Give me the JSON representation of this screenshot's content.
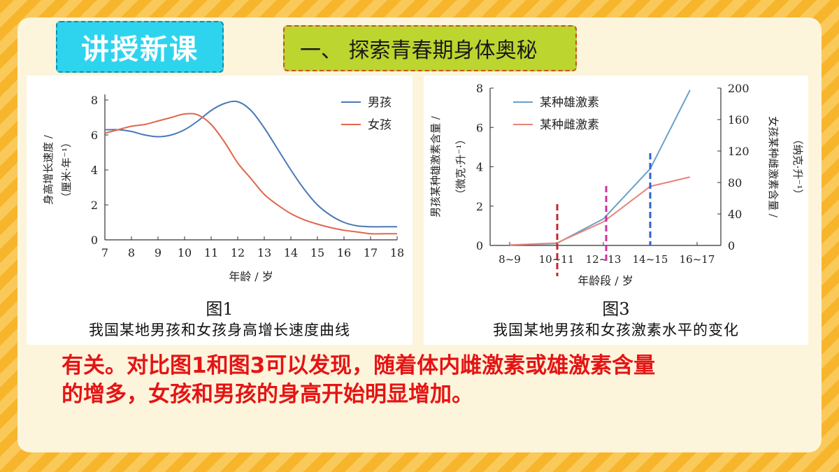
{
  "badge": {
    "label": "讲授新课",
    "bg": "#2ed4ee"
  },
  "section": {
    "title": "一、 探索青春期身体奥秘",
    "bg": "#bcd52f"
  },
  "fig1": {
    "caption_num": "图1",
    "caption_title": "我国某地男孩和女孩身高增长速度曲线"
  },
  "fig3": {
    "caption_num": "图3",
    "caption_title": "我国某地男孩和女孩激素水平的变化"
  },
  "conclusion": {
    "line1": "有关。对比图1和图3可以发现，随着体内雌激素或雄激素含量",
    "line2": "的增多，女孩和男孩的身高开始明显增加。",
    "color": "#e51414"
  },
  "chart_data": [
    {
      "type": "line",
      "xlabel": "年龄 / 岁",
      "ylabel": "身高增长速度 /（厘米·年⁻¹）",
      "xlim": [
        7,
        18
      ],
      "ylim": [
        0,
        8
      ],
      "xticks": [
        "7",
        "8",
        "9",
        "10",
        "11",
        "12",
        "13",
        "14",
        "15",
        "16",
        "17",
        "18"
      ],
      "yticks": [
        "0",
        "2",
        "4",
        "6",
        "8"
      ],
      "legend_position": "top-right",
      "series": [
        {
          "name": "男孩",
          "color": "#4a78b5",
          "x": [
            7,
            7.5,
            8,
            8.5,
            9,
            9.5,
            10,
            10.5,
            11,
            11.5,
            12,
            12.5,
            13,
            13.5,
            14,
            14.5,
            15,
            15.5,
            16,
            16.5,
            17,
            17.5,
            18
          ],
          "y": [
            6.3,
            6.3,
            6.2,
            6.0,
            5.9,
            6.0,
            6.3,
            6.8,
            7.4,
            7.8,
            7.9,
            7.4,
            6.4,
            5.2,
            4.0,
            2.9,
            2.0,
            1.4,
            1.0,
            0.8,
            0.75,
            0.75,
            0.75
          ]
        },
        {
          "name": "女孩",
          "color": "#e0664c",
          "x": [
            7,
            7.5,
            8,
            8.5,
            9,
            9.5,
            10,
            10.5,
            11,
            11.5,
            12,
            12.5,
            13,
            13.5,
            14,
            14.5,
            15,
            15.5,
            16,
            16.5,
            17,
            17.5,
            18
          ],
          "y": [
            6.1,
            6.3,
            6.5,
            6.6,
            6.8,
            7.0,
            7.2,
            7.15,
            6.6,
            5.6,
            4.4,
            3.5,
            2.6,
            2.0,
            1.5,
            1.15,
            0.9,
            0.7,
            0.55,
            0.45,
            0.35,
            0.35,
            0.35
          ]
        }
      ]
    },
    {
      "type": "line",
      "xlabel": "年龄段 / 岁",
      "ylabel": "男孩某种雄激素含量 /（微克·升⁻¹）",
      "ylabel_right": "女孩某种雌激素含量 /（纳克·升⁻¹）",
      "categories": [
        "8~9",
        "10~11",
        "12~13",
        "14~15",
        "16~17"
      ],
      "ylim": [
        0,
        8
      ],
      "ylim_right": [
        0,
        200
      ],
      "yticks": [
        "0",
        "2",
        "4",
        "6",
        "8"
      ],
      "yticks_right": [
        "0",
        "40",
        "80",
        "120",
        "160",
        "200"
      ],
      "legend_position": "top-left",
      "series": [
        {
          "name": "某种雄激素",
          "color": "#6a9fc8",
          "axis": "left",
          "x": [
            0,
            1,
            2,
            3,
            3.85
          ],
          "y": [
            0.02,
            0.1,
            1.35,
            3.9,
            7.9
          ]
        },
        {
          "name": "某种雌激素",
          "color": "#e88377",
          "axis": "right",
          "x": [
            0,
            1,
            2,
            3,
            3.85
          ],
          "y": [
            0.5,
            3,
            30,
            75,
            87
          ]
        }
      ],
      "markers": [
        {
          "at": 1,
          "color": "#c0272d"
        },
        {
          "at": 2,
          "color": "#d0309a"
        },
        {
          "at": 3,
          "color": "#2f5fd6"
        }
      ]
    }
  ]
}
